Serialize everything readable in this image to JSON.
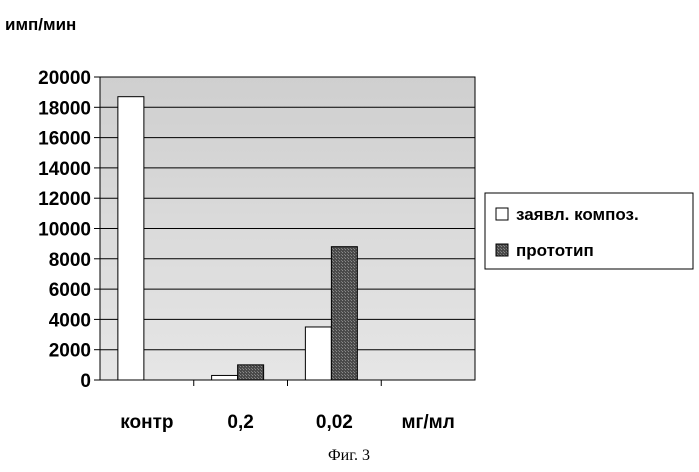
{
  "chart_data": {
    "type": "bar",
    "ylabel": "имп/мин",
    "categories": [
      "контр",
      "0,2",
      "0,02",
      "мг/мл"
    ],
    "series": [
      {
        "name": "заявл. композ.",
        "values": [
          18700,
          300,
          3500,
          null
        ]
      },
      {
        "name": "прототип",
        "values": [
          null,
          1000,
          8800,
          null
        ]
      }
    ],
    "ylim": [
      0,
      20000
    ],
    "yticks": [
      0,
      2000,
      4000,
      6000,
      8000,
      10000,
      12000,
      14000,
      16000,
      18000,
      20000
    ],
    "grid": true,
    "legend": "right",
    "caption": "Фиг. 3",
    "colors": {
      "series1": "#ffffff",
      "series2": "#555555",
      "plot_bg": "#d7d7d7",
      "grid": "#000000"
    }
  }
}
